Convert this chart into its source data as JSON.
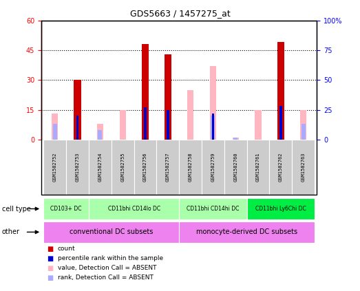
{
  "title": "GDS5663 / 1457275_at",
  "samples": [
    "GSM1582752",
    "GSM1582753",
    "GSM1582754",
    "GSM1582755",
    "GSM1582756",
    "GSM1582757",
    "GSM1582758",
    "GSM1582759",
    "GSM1582760",
    "GSM1582761",
    "GSM1582762",
    "GSM1582763"
  ],
  "count_values": [
    0,
    30,
    0,
    0,
    48,
    43,
    0,
    0,
    0,
    0,
    49,
    0
  ],
  "percentile_values": [
    0,
    20,
    0,
    0,
    27,
    25,
    0,
    22,
    0,
    0,
    28,
    0
  ],
  "absent_value_values": [
    13,
    0,
    8,
    15,
    0,
    0,
    25,
    37,
    1,
    15,
    0,
    15
  ],
  "absent_rank_values": [
    13,
    0,
    8,
    0,
    0,
    0,
    0,
    20,
    2,
    0,
    0,
    13
  ],
  "ylim_left": [
    0,
    60
  ],
  "ylim_right": [
    0,
    100
  ],
  "yticks_left": [
    0,
    15,
    30,
    45,
    60
  ],
  "yticks_right": [
    0,
    25,
    50,
    75,
    100
  ],
  "ytick_labels_left": [
    "0",
    "15",
    "30",
    "45",
    "60"
  ],
  "ytick_labels_right": [
    "0",
    "25",
    "50",
    "75",
    "100%"
  ],
  "count_color": "#CC0000",
  "percentile_color": "#0000CC",
  "absent_value_color": "#FFB6C1",
  "absent_rank_color": "#AAAAFF",
  "cell_type_groups": [
    {
      "label": "CD103+ DC",
      "start": 0,
      "end": 1,
      "color": "#AAFFAA"
    },
    {
      "label": "CD11bhi CD14lo DC",
      "start": 2,
      "end": 5,
      "color": "#AAFFAA"
    },
    {
      "label": "CD11bhi CD14hi DC",
      "start": 6,
      "end": 8,
      "color": "#AAFFAA"
    },
    {
      "label": "CD11bhi Ly6Chi DC",
      "start": 9,
      "end": 11,
      "color": "#00EE44"
    }
  ],
  "other_groups": [
    {
      "label": "conventional DC subsets",
      "start": 0,
      "end": 5,
      "color": "#EE82EE"
    },
    {
      "label": "monocyte-derived DC subsets",
      "start": 6,
      "end": 11,
      "color": "#EE82EE"
    }
  ],
  "legend_items": [
    {
      "color": "#CC0000",
      "label": "count"
    },
    {
      "color": "#0000CC",
      "label": "percentile rank within the sample"
    },
    {
      "color": "#FFB6C1",
      "label": "value, Detection Call = ABSENT"
    },
    {
      "color": "#AAAAFF",
      "label": "rank, Detection Call = ABSENT"
    }
  ]
}
